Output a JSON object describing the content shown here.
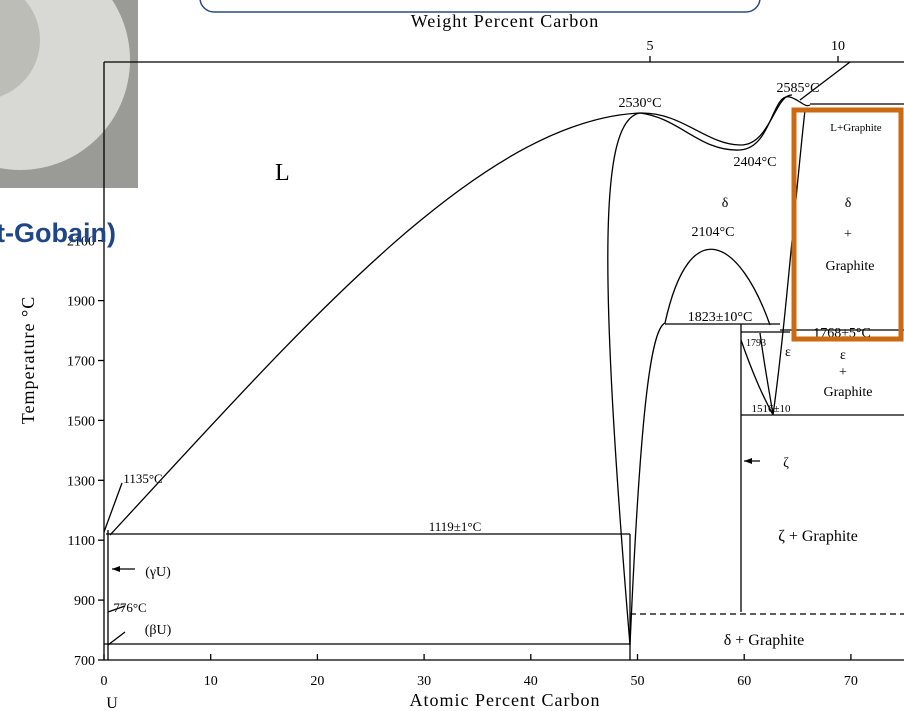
{
  "header": {
    "partial_title": "t-Gobain)"
  },
  "axes": {
    "top_label": "Weight Percent Carbon",
    "top_ticks": [
      5,
      10
    ],
    "x_label": "Atomic Percent Carbon",
    "x_ticks": [
      0,
      10,
      20,
      30,
      40,
      50,
      60,
      70
    ],
    "y_label": "Temperature °C",
    "y_ticks": [
      700,
      900,
      1100,
      1300,
      1500,
      1700,
      1900,
      2100
    ]
  },
  "labels": [
    "L",
    "2530°C",
    "2585°C",
    "2404°C",
    "δ",
    "2104°C",
    "L+Graphite",
    "δ",
    "+",
    "Graphite",
    "1823±10°C",
    "1768±5°C",
    "1793",
    "ε",
    "ε",
    "+",
    "Graphite",
    "1516±10",
    "ζ",
    "ζ + Graphite",
    "1135°C",
    "1119±1°C",
    "(γU)",
    "776°C",
    "(βU)",
    "δ + Graphite",
    "U"
  ]
}
